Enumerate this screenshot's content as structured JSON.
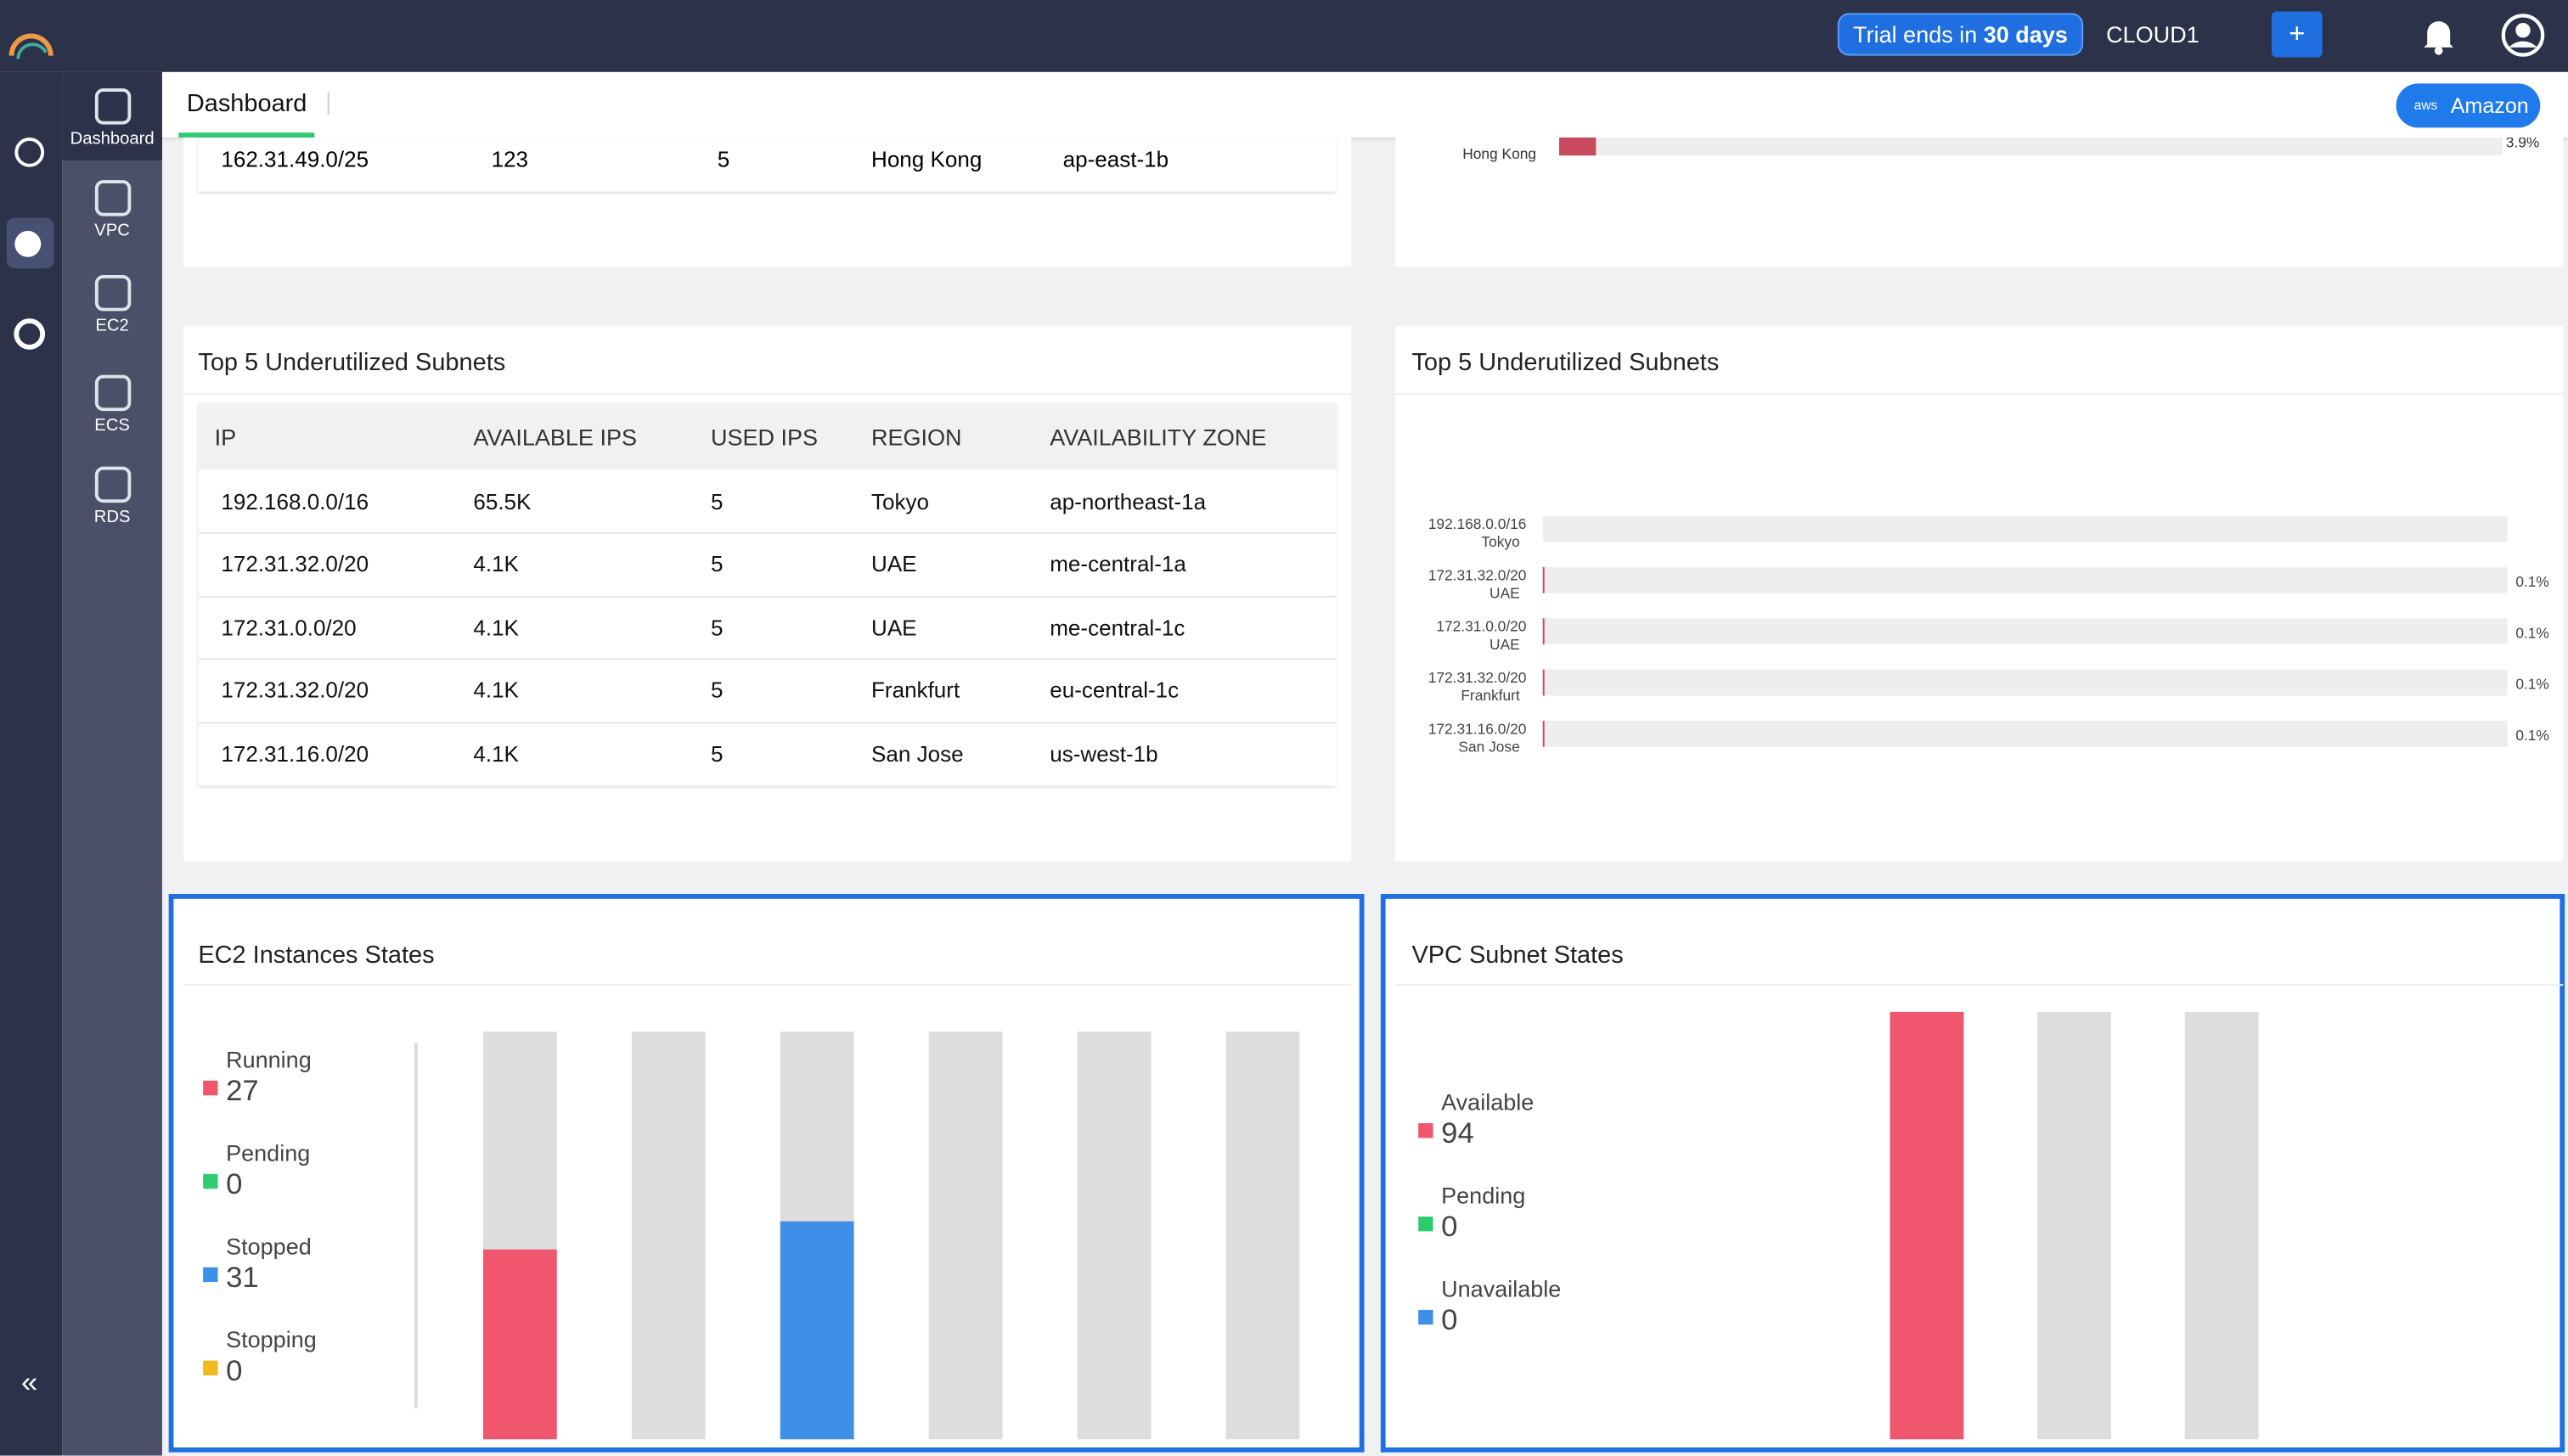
{
  "topbar": {
    "trial_prefix": "Trial ends in",
    "trial_days": "30 days",
    "account": "CLOUD1",
    "add": "+"
  },
  "sidebar": {
    "items": [
      "Dashboard",
      "VPC",
      "EC2",
      "ECS",
      "RDS"
    ]
  },
  "tab": {
    "title": "Dashboard",
    "provider": "Amazon"
  },
  "top_table_partial": {
    "row": [
      "162.31.49.0/25",
      "123",
      "5",
      "Hong Kong",
      "ap-east-1b"
    ]
  },
  "top_chart_partial": {
    "region": "Hong Kong",
    "value": 3.9,
    "value_label": "3.9%"
  },
  "underutilized_table": {
    "title": "Top 5 Underutilized Subnets",
    "columns": [
      "IP",
      "AVAILABLE IPS",
      "USED IPS",
      "REGION",
      "AVAILABILITY ZONE"
    ],
    "rows": [
      [
        "192.168.0.0/16",
        "65.5K",
        "5",
        "Tokyo",
        "ap-northeast-1a"
      ],
      [
        "172.31.32.0/20",
        "4.1K",
        "5",
        "UAE",
        "me-central-1a"
      ],
      [
        "172.31.0.0/20",
        "4.1K",
        "5",
        "UAE",
        "me-central-1c"
      ],
      [
        "172.31.32.0/20",
        "4.1K",
        "5",
        "Frankfurt",
        "eu-central-1c"
      ],
      [
        "172.31.16.0/20",
        "4.1K",
        "5",
        "San Jose",
        "us-west-1b"
      ]
    ]
  },
  "underutilized_chart": {
    "type": "bar",
    "title": "Top 5 Underutilized Subnets",
    "categories": [
      "192.168.0.0/16",
      "172.31.32.0/20",
      "172.31.0.0/20",
      "172.31.32.0/20",
      "172.31.16.0/20"
    ],
    "regions": [
      "Tokyo",
      "UAE",
      "UAE",
      "Frankfurt",
      "San Jose"
    ],
    "values": [
      0.0,
      0.1,
      0.1,
      0.1,
      0.1
    ],
    "value_labels": [
      null,
      "0.1%",
      "0.1%",
      "0.1%",
      "0.1%"
    ],
    "xlim": [
      0,
      100
    ],
    "color": "#e0405a"
  },
  "ec2_states": {
    "type": "bar",
    "title": "EC2 Instances States",
    "series": [
      {
        "name": "Running",
        "color": "#f0566e",
        "values": [
          27
        ]
      },
      {
        "name": "Pending",
        "color": "#2ecc71",
        "values": [
          0
        ]
      },
      {
        "name": "Stopped",
        "color": "#3d8fe8",
        "values": [
          31
        ]
      },
      {
        "name": "Stopping",
        "color": "#f3b71f",
        "values": [
          0
        ]
      }
    ]
  },
  "vpc_states": {
    "type": "bar",
    "title": "VPC Subnet States",
    "series": [
      {
        "name": "Available",
        "color": "#f0566e",
        "values": [
          94
        ]
      },
      {
        "name": "Pending",
        "color": "#2ecc71",
        "values": [
          0
        ]
      },
      {
        "name": "Unavailable",
        "color": "#3d8fe8",
        "values": [
          0
        ]
      }
    ]
  }
}
